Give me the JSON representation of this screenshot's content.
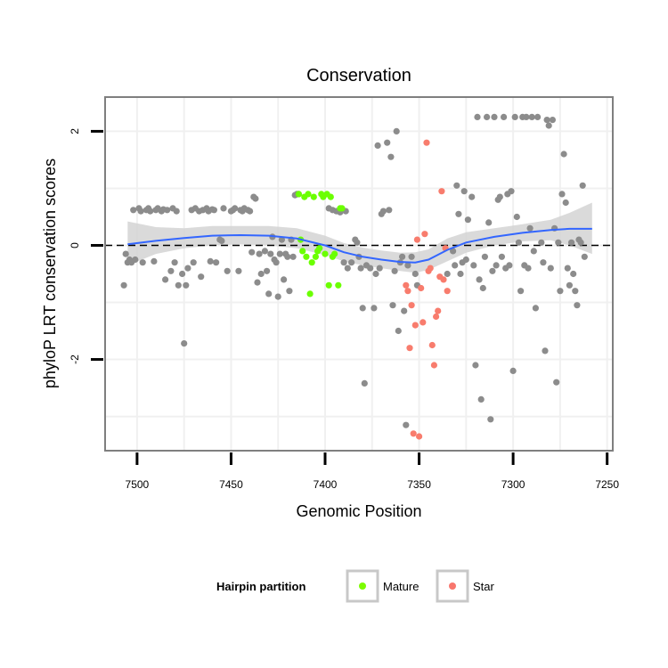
{
  "chart_data": {
    "type": "scatter",
    "title": "Conservation",
    "xlabel": "Genomic Position",
    "ylabel": "phyloP LRT conservation scores",
    "xlim": [
      7517,
      7247
    ],
    "x_reversed": true,
    "ylim": [
      -3.6,
      2.6
    ],
    "x_ticks": [
      7500,
      7450,
      7400,
      7350,
      7300,
      7250
    ],
    "x_tick_labels": [
      "7500",
      "7450",
      "7400",
      "7350",
      "7300",
      "7250"
    ],
    "y_ticks": [
      -2,
      0,
      2
    ],
    "y_tick_labels": [
      "-2",
      "0",
      "2"
    ],
    "y_minor_gridlines": [
      -3,
      -1,
      1
    ],
    "reference_line_y": 0,
    "grid": true,
    "legend": {
      "title": "Hairpin partition",
      "placement": "bottom",
      "entries": [
        {
          "label": "Mature",
          "color": "#7CFC00"
        },
        {
          "label": "Star",
          "color": "#F8766D"
        }
      ]
    },
    "colors": {
      "other": "#8c8c8c",
      "mature": "#6bff00",
      "star": "#f87c6d",
      "smooth_line": "#3366ff",
      "confidence_band": "#d3d3d3"
    },
    "series": [
      {
        "partition": "other",
        "points": [
          [
            7507,
            -0.7
          ],
          [
            7506,
            -0.15
          ],
          [
            7505,
            -0.3
          ],
          [
            7504,
            -0.25
          ],
          [
            7503,
            -0.3
          ],
          [
            7502,
            0.62
          ],
          [
            7501,
            -0.25
          ],
          [
            7499,
            0.65
          ],
          [
            7498,
            0.6
          ],
          [
            7497,
            -0.3
          ],
          [
            7495,
            0.62
          ],
          [
            7494,
            0.65
          ],
          [
            7493,
            0.6
          ],
          [
            7491,
            -0.28
          ],
          [
            7490,
            0.62
          ],
          [
            7489,
            0.65
          ],
          [
            7487,
            0.6
          ],
          [
            7486,
            0.63
          ],
          [
            7485,
            -0.6
          ],
          [
            7484,
            0.62
          ],
          [
            7482,
            -0.45
          ],
          [
            7481,
            0.65
          ],
          [
            7480,
            -0.3
          ],
          [
            7479,
            0.6
          ],
          [
            7478,
            -0.7
          ],
          [
            7476,
            -0.5
          ],
          [
            7475,
            -1.72
          ],
          [
            7474,
            -0.7
          ],
          [
            7473,
            -0.4
          ],
          [
            7471,
            0.62
          ],
          [
            7470,
            -0.3
          ],
          [
            7469,
            0.65
          ],
          [
            7467,
            0.6
          ],
          [
            7466,
            -0.55
          ],
          [
            7465,
            0.62
          ],
          [
            7463,
            0.65
          ],
          [
            7462,
            0.6
          ],
          [
            7461,
            -0.28
          ],
          [
            7460,
            0.63
          ],
          [
            7459,
            0.62
          ],
          [
            7458,
            -0.3
          ],
          [
            7456,
            0.1
          ],
          [
            7455,
            0.08
          ],
          [
            7454,
            0.65
          ],
          [
            7452,
            -0.45
          ],
          [
            7450,
            0.6
          ],
          [
            7449,
            0.62
          ],
          [
            7448,
            0.65
          ],
          [
            7446,
            -0.45
          ],
          [
            7445,
            0.62
          ],
          [
            7444,
            0.6
          ],
          [
            7443,
            0.65
          ],
          [
            7441,
            0.62
          ],
          [
            7440,
            0.6
          ],
          [
            7439,
            -0.12
          ],
          [
            7438,
            0.85
          ],
          [
            7437,
            0.82
          ],
          [
            7436,
            -0.65
          ],
          [
            7435,
            -0.15
          ],
          [
            7434,
            -0.5
          ],
          [
            7432,
            -0.1
          ],
          [
            7431,
            -0.45
          ],
          [
            7430,
            -0.85
          ],
          [
            7429,
            -0.15
          ],
          [
            7428,
            0.15
          ],
          [
            7427,
            -0.25
          ],
          [
            7426,
            -0.3
          ],
          [
            7425,
            -0.9
          ],
          [
            7424,
            -0.15
          ],
          [
            7423,
            0.1
          ],
          [
            7422,
            -0.6
          ],
          [
            7421,
            -0.15
          ],
          [
            7420,
            -0.2
          ],
          [
            7419,
            -0.8
          ],
          [
            7418,
            0.1
          ],
          [
            7417,
            -0.2
          ],
          [
            7416,
            0.88
          ],
          [
            7415,
            0.9
          ],
          [
            7414,
            0.9
          ],
          [
            7398,
            0.65
          ],
          [
            7396,
            0.62
          ],
          [
            7394,
            0.6
          ],
          [
            7392,
            0.58
          ],
          [
            7390,
            -0.3
          ],
          [
            7389,
            0.6
          ],
          [
            7388,
            -0.4
          ],
          [
            7386,
            -0.3
          ],
          [
            7384,
            0.1
          ],
          [
            7383,
            0.05
          ],
          [
            7382,
            -0.2
          ],
          [
            7381,
            -0.4
          ],
          [
            7380,
            -1.1
          ],
          [
            7379,
            -2.42
          ],
          [
            7378,
            -0.35
          ],
          [
            7376,
            -0.4
          ],
          [
            7374,
            -1.1
          ],
          [
            7373,
            -0.5
          ],
          [
            7372,
            1.75
          ],
          [
            7371,
            -0.4
          ],
          [
            7370,
            0.55
          ],
          [
            7369,
            0.6
          ],
          [
            7367,
            1.8
          ],
          [
            7366,
            0.62
          ],
          [
            7365,
            1.55
          ],
          [
            7364,
            -1.05
          ],
          [
            7363,
            -0.45
          ],
          [
            7362,
            2.0
          ],
          [
            7361,
            -1.5
          ],
          [
            7360,
            -0.3
          ],
          [
            7359,
            -0.2
          ],
          [
            7358,
            -1.15
          ],
          [
            7357,
            -3.15
          ],
          [
            7356,
            -0.35
          ],
          [
            7354,
            -0.2
          ],
          [
            7352,
            -0.5
          ],
          [
            7351,
            -0.7
          ],
          [
            7335,
            -0.5
          ],
          [
            7332,
            -0.1
          ],
          [
            7331,
            -0.35
          ],
          [
            7330,
            1.05
          ],
          [
            7329,
            0.55
          ],
          [
            7328,
            -0.5
          ],
          [
            7327,
            -0.3
          ],
          [
            7326,
            0.95
          ],
          [
            7325,
            -0.25
          ],
          [
            7324,
            0.45
          ],
          [
            7322,
            0.85
          ],
          [
            7321,
            -0.35
          ],
          [
            7320,
            -2.1
          ],
          [
            7319,
            2.25
          ],
          [
            7318,
            -0.6
          ],
          [
            7317,
            -2.7
          ],
          [
            7316,
            -0.75
          ],
          [
            7315,
            -0.2
          ],
          [
            7314,
            2.25
          ],
          [
            7313,
            0.4
          ],
          [
            7312,
            -3.05
          ],
          [
            7311,
            -0.45
          ],
          [
            7310,
            2.25
          ],
          [
            7309,
            -0.35
          ],
          [
            7308,
            0.8
          ],
          [
            7307,
            0.85
          ],
          [
            7306,
            -0.2
          ],
          [
            7305,
            2.25
          ],
          [
            7304,
            -0.4
          ],
          [
            7303,
            0.9
          ],
          [
            7302,
            -0.35
          ],
          [
            7301,
            0.95
          ],
          [
            7300,
            -2.2
          ],
          [
            7299,
            2.25
          ],
          [
            7298,
            0.5
          ],
          [
            7297,
            0.05
          ],
          [
            7296,
            -0.8
          ],
          [
            7295,
            2.25
          ],
          [
            7294,
            -0.35
          ],
          [
            7293,
            2.25
          ],
          [
            7292,
            -0.4
          ],
          [
            7291,
            0.3
          ],
          [
            7290,
            2.25
          ],
          [
            7289,
            -0.1
          ],
          [
            7288,
            -1.1
          ],
          [
            7287,
            2.25
          ],
          [
            7285,
            0.05
          ],
          [
            7284,
            -0.3
          ],
          [
            7283,
            -1.85
          ],
          [
            7282,
            2.2
          ],
          [
            7281,
            2.1
          ],
          [
            7280,
            -0.4
          ],
          [
            7279,
            2.2
          ],
          [
            7278,
            0.3
          ],
          [
            7277,
            -2.4
          ],
          [
            7276,
            0.05
          ],
          [
            7275,
            -0.8
          ],
          [
            7274,
            0.9
          ],
          [
            7273,
            1.6
          ],
          [
            7272,
            0.75
          ],
          [
            7271,
            -0.4
          ],
          [
            7270,
            -0.7
          ],
          [
            7269,
            0.05
          ],
          [
            7268,
            -0.5
          ],
          [
            7267,
            -0.8
          ],
          [
            7266,
            -1.05
          ],
          [
            7265,
            0.1
          ],
          [
            7264,
            0.05
          ],
          [
            7263,
            1.05
          ],
          [
            7262,
            -0.2
          ]
        ]
      },
      {
        "partition": "mature",
        "points": [
          [
            7414,
            0.9
          ],
          [
            7413,
            0.1
          ],
          [
            7412,
            -0.1
          ],
          [
            7411,
            0.85
          ],
          [
            7410,
            -0.2
          ],
          [
            7409,
            0.9
          ],
          [
            7408,
            -0.85
          ],
          [
            7407,
            -0.3
          ],
          [
            7406,
            0.85
          ],
          [
            7405,
            -0.2
          ],
          [
            7404,
            -0.1
          ],
          [
            7403,
            -0.05
          ],
          [
            7402,
            0.9
          ],
          [
            7401,
            0.85
          ],
          [
            7400,
            -0.15
          ],
          [
            7399,
            0.9
          ],
          [
            7398,
            -0.7
          ],
          [
            7397,
            0.85
          ],
          [
            7396,
            -0.2
          ],
          [
            7395,
            -0.15
          ],
          [
            7393,
            -0.7
          ],
          [
            7392,
            0.65
          ],
          [
            7391,
            0.65
          ]
        ]
      },
      {
        "partition": "star",
        "points": [
          [
            7357,
            -0.7
          ],
          [
            7356,
            -0.8
          ],
          [
            7355,
            -1.8
          ],
          [
            7354,
            -1.05
          ],
          [
            7353,
            -3.3
          ],
          [
            7352,
            -1.4
          ],
          [
            7351,
            0.1
          ],
          [
            7350,
            -3.35
          ],
          [
            7349,
            -0.75
          ],
          [
            7348,
            -1.35
          ],
          [
            7347,
            0.2
          ],
          [
            7346,
            1.8
          ],
          [
            7345,
            -0.45
          ],
          [
            7344,
            -0.4
          ],
          [
            7343,
            -1.75
          ],
          [
            7342,
            -2.1
          ],
          [
            7341,
            -1.25
          ],
          [
            7340,
            -1.15
          ],
          [
            7339,
            -0.55
          ],
          [
            7338,
            0.95
          ],
          [
            7337,
            -0.6
          ],
          [
            7336,
            -0.05
          ],
          [
            7335,
            -0.8
          ]
        ]
      }
    ],
    "smooth": {
      "x": [
        7505,
        7490,
        7475,
        7460,
        7445,
        7430,
        7415,
        7400,
        7390,
        7380,
        7370,
        7360,
        7352,
        7345,
        7335,
        7325,
        7310,
        7295,
        7280,
        7270,
        7258
      ],
      "y": [
        0.02,
        0.08,
        0.13,
        0.17,
        0.18,
        0.17,
        0.12,
        0.0,
        -0.12,
        -0.2,
        -0.25,
        -0.29,
        -0.3,
        -0.25,
        -0.08,
        0.05,
        0.15,
        0.22,
        0.27,
        0.29,
        0.29
      ],
      "lower": [
        -0.35,
        -0.15,
        -0.05,
        0.0,
        0.02,
        0.0,
        -0.05,
        -0.17,
        -0.28,
        -0.35,
        -0.4,
        -0.45,
        -0.48,
        -0.43,
        -0.28,
        -0.13,
        0.0,
        0.07,
        0.09,
        0.0,
        -0.15
      ],
      "upper": [
        0.42,
        0.32,
        0.3,
        0.34,
        0.34,
        0.34,
        0.3,
        0.17,
        0.04,
        -0.04,
        -0.09,
        -0.13,
        -0.12,
        -0.07,
        0.12,
        0.23,
        0.3,
        0.37,
        0.45,
        0.57,
        0.75
      ]
    }
  }
}
